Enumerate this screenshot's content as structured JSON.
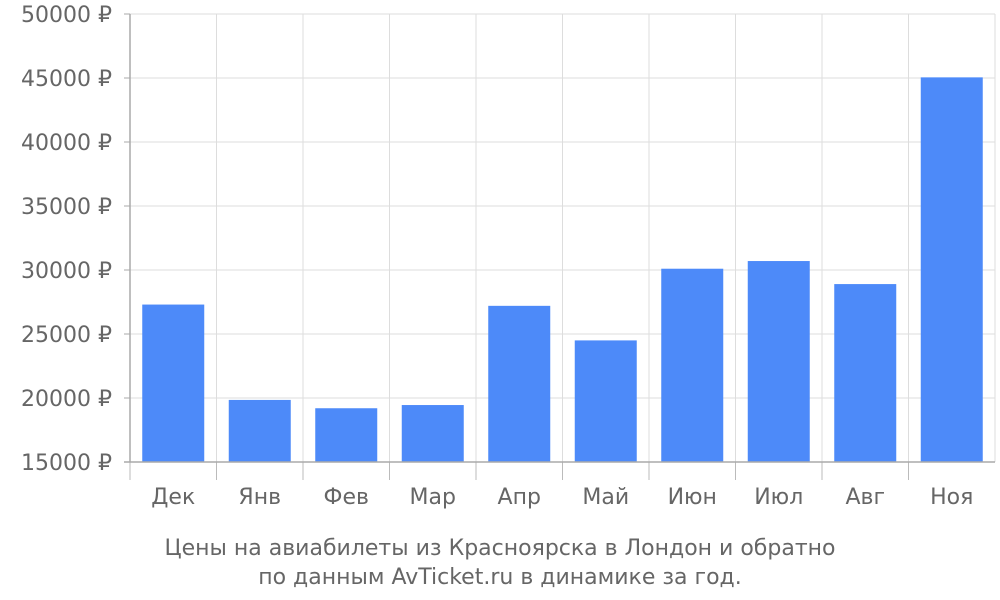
{
  "chart_data": {
    "type": "bar",
    "categories": [
      "Дек",
      "Янв",
      "Фев",
      "Мар",
      "Апр",
      "Май",
      "Июн",
      "Июл",
      "Авг",
      "Ноя"
    ],
    "values": [
      27300,
      19850,
      19200,
      19450,
      27200,
      24500,
      30100,
      30700,
      28900,
      45050
    ],
    "ylim": [
      15000,
      50000
    ],
    "y_ticks": [
      "15000 ₽",
      "20000 ₽",
      "25000 ₽",
      "30000 ₽",
      "35000 ₽",
      "40000 ₽",
      "45000 ₽",
      "50000 ₽"
    ],
    "y_tick_values": [
      15000,
      20000,
      25000,
      30000,
      35000,
      40000,
      45000,
      50000
    ],
    "grid": true,
    "bar_color": "#4d8af9",
    "caption_lines": [
      "Цены на авиабилеты из Красноярска в Лондон и обратно",
      "по данным AvTicket.ru в динамике за год."
    ]
  }
}
